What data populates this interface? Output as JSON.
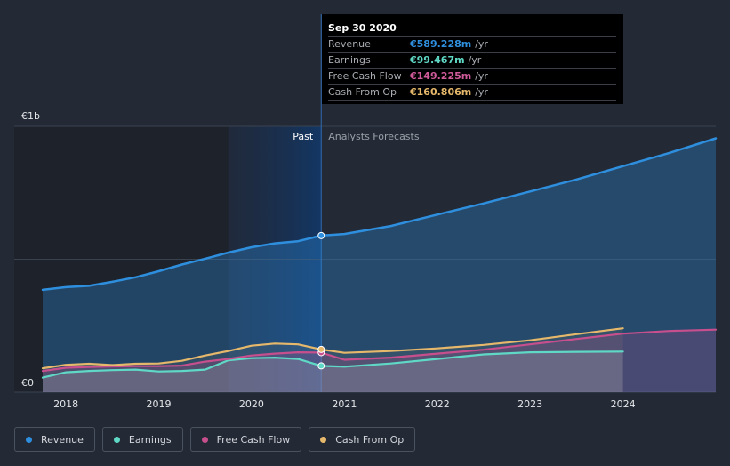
{
  "chart_data": {
    "type": "line",
    "y_axis_labels": [
      "€1b",
      "€0"
    ],
    "ylim": [
      0,
      1000
    ],
    "xlim": [
      2017.75,
      2025.0
    ],
    "x_tick_labels": [
      "2018",
      "2019",
      "2020",
      "2021",
      "2022",
      "2023",
      "2024"
    ],
    "x_ticks": [
      2018,
      2019,
      2020,
      2021,
      2022,
      2023,
      2024
    ],
    "past_label": "Past",
    "forecast_label": "Analysts Forecasts",
    "divider_x": 2020.75,
    "highlight_start_x": 2019.75,
    "series": [
      {
        "name": "Revenue",
        "color": "#2f8fdf",
        "x": [
          2017.75,
          2018.0,
          2018.25,
          2018.5,
          2018.75,
          2019.0,
          2019.25,
          2019.5,
          2019.75,
          2020.0,
          2020.25,
          2020.5,
          2020.75,
          2021.0,
          2021.5,
          2022.0,
          2022.5,
          2023.0,
          2023.5,
          2024.0,
          2024.5,
          2025.0
        ],
        "y": [
          385,
          395,
          400,
          415,
          432,
          455,
          480,
          502,
          525,
          545,
          560,
          568,
          589,
          595,
          625,
          668,
          710,
          755,
          800,
          850,
          900,
          955
        ]
      },
      {
        "name": "Earnings",
        "color": "#5fd9c6",
        "x": [
          2017.75,
          2018.0,
          2018.25,
          2018.5,
          2018.75,
          2019.0,
          2019.25,
          2019.5,
          2019.75,
          2020.0,
          2020.25,
          2020.5,
          2020.75,
          2021.0,
          2021.5,
          2022.0,
          2022.5,
          2023.0,
          2023.5,
          2024.0
        ],
        "y": [
          55,
          75,
          80,
          83,
          85,
          78,
          80,
          85,
          120,
          128,
          130,
          125,
          99,
          96,
          108,
          125,
          142,
          150,
          152,
          153
        ]
      },
      {
        "name": "Free Cash Flow",
        "color": "#c74f8e",
        "x": [
          2017.75,
          2018.0,
          2018.25,
          2018.5,
          2018.75,
          2019.0,
          2019.25,
          2019.5,
          2019.75,
          2020.0,
          2020.25,
          2020.5,
          2020.75,
          2021.0,
          2021.5,
          2022.0,
          2022.5,
          2023.0,
          2023.5,
          2024.0,
          2024.5,
          2025.0
        ],
        "y": [
          80,
          92,
          95,
          97,
          98,
          98,
          100,
          115,
          125,
          138,
          145,
          150,
          149,
          122,
          130,
          145,
          160,
          180,
          200,
          220,
          230,
          235
        ]
      },
      {
        "name": "Cash From Op",
        "color": "#e6b86b",
        "x": [
          2017.75,
          2018.0,
          2018.25,
          2018.5,
          2018.75,
          2019.0,
          2019.25,
          2019.5,
          2019.75,
          2020.0,
          2020.25,
          2020.5,
          2020.75,
          2021.0,
          2021.5,
          2022.0,
          2022.5,
          2023.0,
          2023.5,
          2024.0
        ],
        "y": [
          90,
          103,
          107,
          102,
          107,
          108,
          118,
          138,
          155,
          175,
          183,
          180,
          161,
          148,
          155,
          165,
          178,
          195,
          218,
          240
        ]
      }
    ],
    "legend": [
      "Revenue",
      "Earnings",
      "Free Cash Flow",
      "Cash From Op"
    ]
  },
  "tooltip": {
    "title": "Sep 30 2020",
    "rows": [
      {
        "label": "Revenue",
        "value": "€589.228m",
        "unit": "/yr",
        "color": "#2f8fdf"
      },
      {
        "label": "Earnings",
        "value": "€99.467m",
        "unit": "/yr",
        "color": "#5fd9c6"
      },
      {
        "label": "Free Cash Flow",
        "value": "€149.225m",
        "unit": "/yr",
        "color": "#c74f8e"
      },
      {
        "label": "Cash From Op",
        "value": "€160.806m",
        "unit": "/yr",
        "color": "#e6b86b"
      }
    ]
  },
  "legend_items": [
    {
      "label": "Revenue",
      "color": "#2f8fdf"
    },
    {
      "label": "Earnings",
      "color": "#5fd9c6"
    },
    {
      "label": "Free Cash Flow",
      "color": "#c74f8e"
    },
    {
      "label": "Cash From Op",
      "color": "#e6b86b"
    }
  ]
}
